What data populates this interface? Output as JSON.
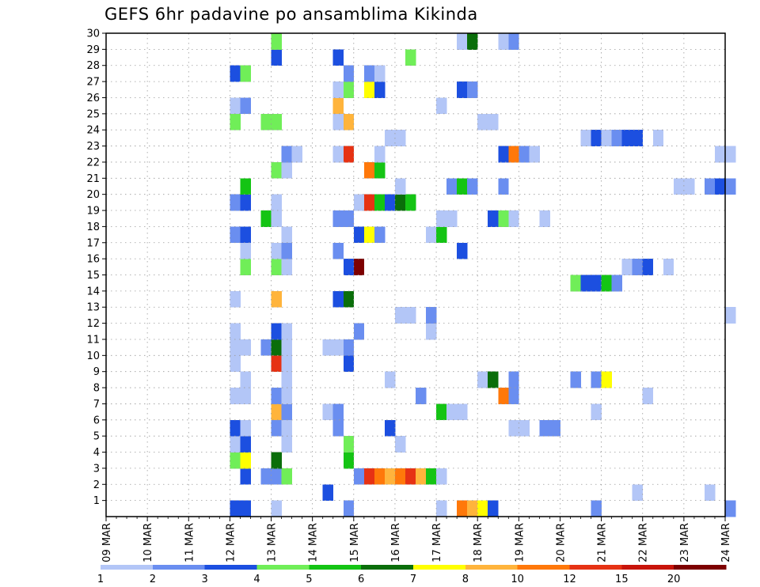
{
  "chart_data": {
    "type": "heatmap",
    "title": "GEFS 6hr padavine po ansamblima Kikinda",
    "x_ticks": [
      "09 MAR",
      "10 MAR",
      "11 MAR",
      "12 MAR",
      "13 MAR",
      "14 MAR",
      "15 MAR",
      "16 MAR",
      "17 MAR",
      "18 MAR",
      "19 MAR",
      "20 MAR",
      "21 MAR",
      "22 MAR",
      "23 MAR",
      "24 MAR"
    ],
    "y_ticks": [
      "1",
      "2",
      "3",
      "4",
      "5",
      "6",
      "7",
      "8",
      "9",
      "10",
      "11",
      "12",
      "13",
      "14",
      "15",
      "16",
      "17",
      "18",
      "19",
      "20",
      "21",
      "22",
      "23",
      "24",
      "25",
      "26",
      "27",
      "28",
      "29",
      "30"
    ],
    "y_range": [
      0,
      30
    ],
    "steps_per_day": 4,
    "grid": true,
    "colorbar": {
      "labels": [
        "1",
        "2",
        "3",
        "4",
        "5",
        "6",
        "7",
        "8",
        "10",
        "12",
        "15",
        "20"
      ],
      "colors": [
        "#b3c6f7",
        "#6a8ef0",
        "#1c4fe0",
        "#70ee58",
        "#14c414",
        "#0a6e0a",
        "#ffff00",
        "#ffb43c",
        "#ff780a",
        "#e63214",
        "#c8140a",
        "#7d0000"
      ]
    },
    "cells": [
      [
        0,
        12,
        2
      ],
      [
        0,
        13,
        2
      ],
      [
        0,
        16,
        0
      ],
      [
        0,
        23,
        1
      ],
      [
        0,
        32,
        0
      ],
      [
        0,
        34,
        8
      ],
      [
        0,
        35,
        7
      ],
      [
        0,
        36,
        6
      ],
      [
        0,
        37,
        2
      ],
      [
        0,
        47,
        1
      ],
      [
        0,
        60,
        1
      ],
      [
        1,
        21,
        2
      ],
      [
        1,
        58,
        0
      ],
      [
        1,
        51,
        0
      ],
      [
        2,
        13,
        2
      ],
      [
        2,
        15,
        1
      ],
      [
        2,
        16,
        1
      ],
      [
        2,
        17,
        3
      ],
      [
        2,
        24,
        1
      ],
      [
        2,
        25,
        9
      ],
      [
        2,
        26,
        8
      ],
      [
        2,
        27,
        7
      ],
      [
        2,
        28,
        8
      ],
      [
        2,
        29,
        9
      ],
      [
        2,
        30,
        7
      ],
      [
        2,
        31,
        4
      ],
      [
        2,
        32,
        0
      ],
      [
        3,
        12,
        3
      ],
      [
        3,
        13,
        6
      ],
      [
        3,
        16,
        5
      ],
      [
        3,
        23,
        4
      ],
      [
        4,
        12,
        0
      ],
      [
        4,
        13,
        2
      ],
      [
        4,
        17,
        0
      ],
      [
        4,
        23,
        3
      ],
      [
        4,
        28,
        0
      ],
      [
        5,
        12,
        2
      ],
      [
        5,
        13,
        0
      ],
      [
        5,
        16,
        1
      ],
      [
        5,
        17,
        0
      ],
      [
        5,
        22,
        1
      ],
      [
        5,
        27,
        2
      ],
      [
        5,
        39,
        0
      ],
      [
        5,
        40,
        0
      ],
      [
        5,
        42,
        1
      ],
      [
        5,
        43,
        1
      ],
      [
        6,
        16,
        7
      ],
      [
        6,
        17,
        1
      ],
      [
        6,
        21,
        0
      ],
      [
        6,
        22,
        1
      ],
      [
        6,
        32,
        4
      ],
      [
        6,
        33,
        0
      ],
      [
        6,
        34,
        0
      ],
      [
        6,
        47,
        0
      ],
      [
        7,
        12,
        0
      ],
      [
        7,
        13,
        0
      ],
      [
        7,
        16,
        1
      ],
      [
        7,
        17,
        0
      ],
      [
        7,
        30,
        1
      ],
      [
        7,
        38,
        8
      ],
      [
        7,
        39,
        1
      ],
      [
        7,
        52,
        0
      ],
      [
        8,
        13,
        0
      ],
      [
        8,
        17,
        0
      ],
      [
        8,
        27,
        0
      ],
      [
        8,
        36,
        0
      ],
      [
        8,
        37,
        5
      ],
      [
        8,
        39,
        1
      ],
      [
        8,
        45,
        1
      ],
      [
        8,
        47,
        1
      ],
      [
        8,
        48,
        6
      ],
      [
        9,
        12,
        0
      ],
      [
        9,
        16,
        9
      ],
      [
        9,
        17,
        0
      ],
      [
        9,
        23,
        2
      ],
      [
        10,
        12,
        0
      ],
      [
        10,
        13,
        0
      ],
      [
        10,
        15,
        1
      ],
      [
        10,
        16,
        5
      ],
      [
        10,
        17,
        0
      ],
      [
        10,
        21,
        0
      ],
      [
        10,
        22,
        0
      ],
      [
        10,
        23,
        1
      ],
      [
        11,
        12,
        0
      ],
      [
        11,
        16,
        2
      ],
      [
        11,
        17,
        0
      ],
      [
        11,
        24,
        1
      ],
      [
        11,
        31,
        0
      ],
      [
        12,
        28,
        0
      ],
      [
        12,
        29,
        0
      ],
      [
        12,
        31,
        1
      ],
      [
        12,
        60,
        0
      ],
      [
        13,
        12,
        0
      ],
      [
        13,
        16,
        7
      ],
      [
        13,
        22,
        2
      ],
      [
        13,
        23,
        5
      ],
      [
        14,
        45,
        3
      ],
      [
        14,
        46,
        2
      ],
      [
        14,
        47,
        2
      ],
      [
        14,
        48,
        4
      ],
      [
        14,
        49,
        1
      ],
      [
        15,
        13,
        3
      ],
      [
        15,
        16,
        3
      ],
      [
        15,
        17,
        0
      ],
      [
        15,
        23,
        2
      ],
      [
        15,
        24,
        11
      ],
      [
        15,
        50,
        0
      ],
      [
        15,
        51,
        1
      ],
      [
        15,
        52,
        2
      ],
      [
        15,
        54,
        0
      ],
      [
        16,
        13,
        0
      ],
      [
        16,
        16,
        0
      ],
      [
        16,
        17,
        1
      ],
      [
        16,
        22,
        1
      ],
      [
        16,
        34,
        2
      ],
      [
        17,
        12,
        1
      ],
      [
        17,
        13,
        2
      ],
      [
        17,
        17,
        0
      ],
      [
        17,
        24,
        2
      ],
      [
        17,
        25,
        6
      ],
      [
        17,
        26,
        1
      ],
      [
        17,
        31,
        0
      ],
      [
        17,
        32,
        4
      ],
      [
        18,
        15,
        4
      ],
      [
        18,
        16,
        0
      ],
      [
        18,
        22,
        1
      ],
      [
        18,
        23,
        1
      ],
      [
        18,
        32,
        0
      ],
      [
        18,
        33,
        0
      ],
      [
        18,
        37,
        2
      ],
      [
        18,
        38,
        3
      ],
      [
        18,
        39,
        0
      ],
      [
        18,
        42,
        0
      ],
      [
        19,
        12,
        1
      ],
      [
        19,
        13,
        2
      ],
      [
        19,
        16,
        0
      ],
      [
        19,
        24,
        0
      ],
      [
        19,
        25,
        9
      ],
      [
        19,
        26,
        4
      ],
      [
        19,
        27,
        2
      ],
      [
        19,
        28,
        5
      ],
      [
        19,
        29,
        4
      ],
      [
        20,
        13,
        4
      ],
      [
        20,
        28,
        0
      ],
      [
        20,
        33,
        1
      ],
      [
        20,
        34,
        4
      ],
      [
        20,
        35,
        1
      ],
      [
        20,
        38,
        1
      ],
      [
        20,
        55,
        0
      ],
      [
        20,
        56,
        0
      ],
      [
        20,
        58,
        1
      ],
      [
        20,
        59,
        2
      ],
      [
        20,
        60,
        1
      ],
      [
        21,
        16,
        3
      ],
      [
        21,
        17,
        0
      ],
      [
        21,
        25,
        8
      ],
      [
        21,
        26,
        4
      ],
      [
        22,
        17,
        1
      ],
      [
        22,
        18,
        0
      ],
      [
        22,
        22,
        0
      ],
      [
        22,
        23,
        9
      ],
      [
        22,
        26,
        0
      ],
      [
        22,
        38,
        2
      ],
      [
        22,
        39,
        8
      ],
      [
        22,
        40,
        1
      ],
      [
        22,
        41,
        0
      ],
      [
        22,
        59,
        0
      ],
      [
        22,
        60,
        0
      ],
      [
        23,
        27,
        0
      ],
      [
        23,
        28,
        0
      ],
      [
        23,
        46,
        0
      ],
      [
        23,
        47,
        2
      ],
      [
        23,
        48,
        0
      ],
      [
        23,
        49,
        1
      ],
      [
        23,
        50,
        2
      ],
      [
        23,
        51,
        2
      ],
      [
        23,
        53,
        0
      ],
      [
        24,
        12,
        3
      ],
      [
        24,
        15,
        3
      ],
      [
        24,
        16,
        3
      ],
      [
        24,
        22,
        0
      ],
      [
        24,
        23,
        7
      ],
      [
        24,
        36,
        0
      ],
      [
        24,
        37,
        0
      ],
      [
        25,
        12,
        0
      ],
      [
        25,
        13,
        1
      ],
      [
        25,
        22,
        7
      ],
      [
        25,
        32,
        0
      ],
      [
        26,
        22,
        0
      ],
      [
        26,
        23,
        3
      ],
      [
        26,
        25,
        6
      ],
      [
        26,
        26,
        2
      ],
      [
        26,
        34,
        2
      ],
      [
        26,
        35,
        1
      ],
      [
        27,
        12,
        2
      ],
      [
        27,
        13,
        3
      ],
      [
        27,
        23,
        1
      ],
      [
        27,
        25,
        1
      ],
      [
        27,
        26,
        0
      ],
      [
        28,
        16,
        2
      ],
      [
        28,
        22,
        2
      ],
      [
        28,
        29,
        3
      ],
      [
        29,
        16,
        3
      ],
      [
        29,
        34,
        0
      ],
      [
        29,
        35,
        5
      ],
      [
        29,
        38,
        0
      ],
      [
        29,
        39,
        1
      ]
    ]
  }
}
